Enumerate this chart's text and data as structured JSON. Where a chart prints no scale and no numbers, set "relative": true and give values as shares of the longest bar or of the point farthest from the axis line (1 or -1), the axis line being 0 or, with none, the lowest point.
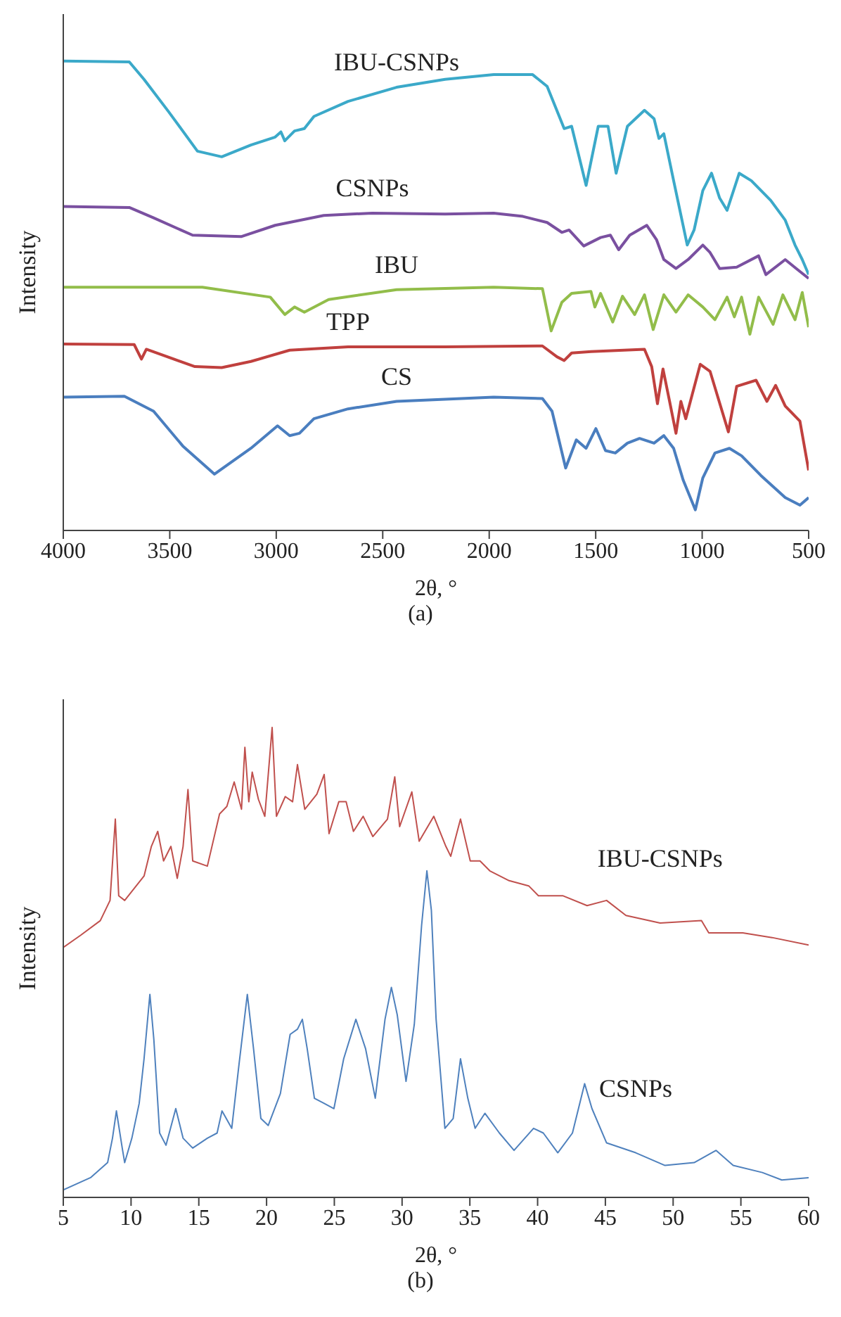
{
  "chart_data": [
    {
      "type": "line",
      "relative": true,
      "xlabel": "2θ, °",
      "ylabel": "Intensity",
      "annotations": [
        "(a)"
      ],
      "xlim": [
        4000,
        500
      ],
      "xticks": [
        4000,
        3500,
        3000,
        2500,
        2000,
        1500,
        1000,
        500
      ],
      "marker": "none",
      "line_style": "solid",
      "series": [
        {
          "name": "IBU-CSNPs",
          "color": "#3ba9c9",
          "x": [
            4000,
            3690,
            3621,
            3507,
            3370,
            3256,
            3119,
            3005,
            2978,
            2960,
            2914,
            2868,
            2823,
            2663,
            2435,
            2207,
            1979,
            1796,
            1728,
            1648,
            1613,
            1545,
            1488,
            1442,
            1404,
            1351,
            1271,
            1226,
            1203,
            1180,
            1134,
            1070,
            1038,
            997,
            956,
            918,
            883,
            826,
            769,
            678,
            610,
            564,
            530,
            500
          ],
          "values": [
            1.0,
            0.998,
            0.961,
            0.893,
            0.808,
            0.796,
            0.821,
            0.838,
            0.849,
            0.83,
            0.851,
            0.856,
            0.882,
            0.914,
            0.944,
            0.961,
            0.971,
            0.971,
            0.946,
            0.856,
            0.861,
            0.735,
            0.861,
            0.861,
            0.761,
            0.861,
            0.895,
            0.877,
            0.835,
            0.845,
            0.745,
            0.608,
            0.64,
            0.724,
            0.761,
            0.708,
            0.682,
            0.761,
            0.745,
            0.703,
            0.661,
            0.608,
            0.577,
            0.545
          ]
        },
        {
          "name": "CSNPs",
          "color": "#7a50a0",
          "x": [
            4000,
            3690,
            3576,
            3393,
            3165,
            3005,
            2777,
            2549,
            2207,
            1979,
            1842,
            1728,
            1659,
            1625,
            1556,
            1477,
            1431,
            1392,
            1340,
            1260,
            1214,
            1180,
            1123,
            1066,
            997,
            963,
            918,
            838,
            735,
            701,
            610,
            553,
            500
          ],
          "values": [
            0.69,
            0.688,
            0.666,
            0.629,
            0.626,
            0.65,
            0.671,
            0.676,
            0.674,
            0.676,
            0.669,
            0.656,
            0.635,
            0.64,
            0.606,
            0.624,
            0.629,
            0.598,
            0.629,
            0.65,
            0.619,
            0.577,
            0.558,
            0.577,
            0.608,
            0.592,
            0.558,
            0.561,
            0.585,
            0.545,
            0.577,
            0.556,
            0.537
          ]
        },
        {
          "name": "IBU",
          "color": "#92bd4a",
          "x": [
            4000,
            3347,
            3028,
            2960,
            2914,
            2868,
            2754,
            2435,
            1979,
            1750,
            1709,
            1659,
            1613,
            1522,
            1504,
            1477,
            1420,
            1374,
            1317,
            1271,
            1230,
            1180,
            1123,
            1066,
            997,
            940,
            883,
            849,
            815,
            776,
            735,
            667,
            621,
            564,
            530,
            500
          ],
          "values": [
            0.518,
            0.518,
            0.497,
            0.46,
            0.476,
            0.465,
            0.492,
            0.513,
            0.518,
            0.515,
            0.425,
            0.486,
            0.505,
            0.509,
            0.476,
            0.505,
            0.444,
            0.499,
            0.46,
            0.502,
            0.428,
            0.502,
            0.465,
            0.502,
            0.476,
            0.449,
            0.497,
            0.455,
            0.497,
            0.418,
            0.497,
            0.439,
            0.502,
            0.449,
            0.507,
            0.433
          ]
        },
        {
          "name": "TPP",
          "color": "#c0403e",
          "x": [
            4000,
            3667,
            3633,
            3610,
            3382,
            3256,
            3119,
            2937,
            2663,
            2207,
            1750,
            1682,
            1648,
            1613,
            1522,
            1271,
            1237,
            1210,
            1184,
            1153,
            1123,
            1100,
            1077,
            1009,
            963,
            877,
            838,
            747,
            696,
            655,
            610,
            541,
            500
          ],
          "values": [
            0.397,
            0.396,
            0.365,
            0.386,
            0.349,
            0.347,
            0.36,
            0.384,
            0.391,
            0.391,
            0.393,
            0.37,
            0.362,
            0.378,
            0.381,
            0.386,
            0.349,
            0.27,
            0.344,
            0.275,
            0.207,
            0.275,
            0.238,
            0.354,
            0.339,
            0.21,
            0.307,
            0.32,
            0.275,
            0.309,
            0.265,
            0.233,
            0.128
          ]
        },
        {
          "name": "CS",
          "color": "#4a7ebf",
          "x": [
            4000,
            3713,
            3576,
            3439,
            3290,
            3119,
            2994,
            2937,
            2891,
            2823,
            2663,
            2435,
            1979,
            1750,
            1705,
            1641,
            1591,
            1545,
            1499,
            1454,
            1408,
            1351,
            1294,
            1226,
            1180,
            1134,
            1089,
            1032,
            997,
            940,
            872,
            815,
            724,
            610,
            541,
            500
          ],
          "values": [
            0.284,
            0.286,
            0.254,
            0.18,
            0.12,
            0.175,
            0.223,
            0.202,
            0.207,
            0.238,
            0.259,
            0.275,
            0.284,
            0.281,
            0.254,
            0.133,
            0.193,
            0.175,
            0.217,
            0.17,
            0.165,
            0.186,
            0.196,
            0.186,
            0.202,
            0.175,
            0.107,
            0.044,
            0.112,
            0.165,
            0.175,
            0.159,
            0.117,
            0.07,
            0.054,
            0.07
          ]
        }
      ]
    },
    {
      "type": "line",
      "relative": true,
      "xlabel": "2θ, °",
      "ylabel": "Intensity",
      "annotations": [
        "(b)"
      ],
      "xlim": [
        5,
        60
      ],
      "xticks": [
        5,
        10,
        15,
        20,
        25,
        30,
        35,
        40,
        45,
        50,
        55,
        60
      ],
      "marker": "none",
      "line_style": "solid",
      "series": [
        {
          "name": "IBU-CSNPs",
          "color": "#c0504d",
          "x": [
            5,
            6.29,
            7.73,
            8.45,
            8.84,
            9.09,
            9.53,
            10.96,
            11.5,
            11.97,
            12.4,
            12.94,
            13.41,
            13.84,
            14.2,
            14.55,
            15.63,
            16.53,
            17.07,
            17.61,
            18.15,
            18.4,
            18.69,
            18.94,
            19.4,
            19.87,
            20.41,
            20.73,
            21.38,
            21.92,
            22.28,
            22.82,
            23.71,
            24.25,
            24.61,
            25.33,
            25.87,
            26.41,
            27.13,
            27.84,
            28.92,
            29.46,
            29.82,
            30.72,
            31.26,
            32.34,
            33.23,
            33.59,
            34.31,
            35.03,
            35.75,
            36.47,
            37.9,
            39.34,
            40.06,
            41.85,
            43.65,
            45.09,
            46.52,
            49.04,
            52.09,
            52.63,
            55.14,
            57.3,
            60
          ],
          "values": [
            0.532,
            0.558,
            0.589,
            0.632,
            0.805,
            0.642,
            0.632,
            0.684,
            0.747,
            0.779,
            0.716,
            0.747,
            0.679,
            0.747,
            0.868,
            0.716,
            0.705,
            0.816,
            0.832,
            0.884,
            0.826,
            0.958,
            0.842,
            0.905,
            0.847,
            0.811,
            1.0,
            0.811,
            0.853,
            0.842,
            0.921,
            0.826,
            0.858,
            0.9,
            0.774,
            0.842,
            0.842,
            0.779,
            0.811,
            0.768,
            0.805,
            0.895,
            0.789,
            0.863,
            0.758,
            0.811,
            0.747,
            0.726,
            0.805,
            0.716,
            0.716,
            0.695,
            0.674,
            0.663,
            0.642,
            0.642,
            0.621,
            0.632,
            0.6,
            0.584,
            0.589,
            0.563,
            0.563,
            0.553,
            0.537
          ]
        },
        {
          "name": "CSNPs",
          "color": "#4f81bd",
          "x": [
            5,
            7.01,
            8.27,
            8.63,
            8.92,
            9.35,
            9.53,
            10.06,
            10.6,
            10.96,
            11.39,
            11.68,
            12.11,
            12.58,
            13.3,
            13.84,
            14.55,
            15.63,
            16.35,
            16.71,
            17.43,
            17.97,
            18.58,
            19.04,
            19.58,
            20.12,
            21.02,
            21.74,
            22.28,
            22.64,
            23.0,
            23.53,
            24.25,
            24.97,
            25.69,
            26.59,
            27.31,
            28.02,
            28.74,
            29.21,
            29.64,
            30.29,
            30.9,
            31.44,
            31.83,
            32.16,
            32.51,
            33.16,
            33.77,
            34.31,
            34.85,
            35.39,
            36.11,
            37.18,
            38.26,
            39.7,
            40.42,
            41.49,
            42.57,
            43.47,
            44.01,
            45.09,
            47.24,
            49.4,
            51.55,
            53.17,
            54.43,
            56.58,
            58.02,
            60
          ],
          "values": [
            0.016,
            0.042,
            0.074,
            0.126,
            0.184,
            0.105,
            0.074,
            0.126,
            0.2,
            0.295,
            0.432,
            0.337,
            0.137,
            0.111,
            0.189,
            0.126,
            0.105,
            0.126,
            0.137,
            0.184,
            0.147,
            0.284,
            0.432,
            0.316,
            0.168,
            0.153,
            0.221,
            0.347,
            0.358,
            0.379,
            0.316,
            0.211,
            0.2,
            0.189,
            0.295,
            0.379,
            0.316,
            0.211,
            0.379,
            0.447,
            0.389,
            0.247,
            0.368,
            0.579,
            0.695,
            0.611,
            0.379,
            0.147,
            0.168,
            0.295,
            0.211,
            0.147,
            0.179,
            0.137,
            0.1,
            0.147,
            0.137,
            0.095,
            0.137,
            0.242,
            0.189,
            0.116,
            0.095,
            0.068,
            0.074,
            0.1,
            0.068,
            0.053,
            0.037,
            0.042
          ]
        }
      ]
    }
  ]
}
